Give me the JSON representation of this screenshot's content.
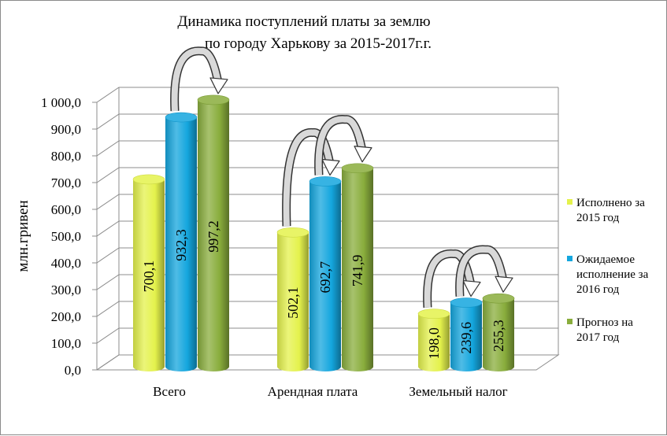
{
  "chart_data": {
    "type": "bar",
    "title": [
      "Динамика поступлений платы за землю",
      "по городу Харькову за 2015-2017г.г."
    ],
    "ylabel": "млн.гривен",
    "xlabel": "",
    "ylim": [
      0,
      1000
    ],
    "y_ticks": [
      "0,0",
      "100,0",
      "200,0",
      "300,0",
      "400,0",
      "500,0",
      "600,0",
      "700,0",
      "800,0",
      "900,0",
      "1 000,0"
    ],
    "categories": [
      "Всего",
      "Арендная плата",
      "Земельный налог"
    ],
    "series": [
      {
        "name": [
          "Исполнено за",
          "2015 год"
        ],
        "color": "#e4f24c",
        "values": [
          700.1,
          502.1,
          198.0
        ],
        "labels": [
          "700,1",
          "502,1",
          "198,0"
        ]
      },
      {
        "name": [
          "Ожидаемое",
          "исполнение  за",
          "2016 год"
        ],
        "color": "#14a6de",
        "values": [
          932.3,
          692.7,
          239.6
        ],
        "labels": [
          "932,3",
          "692,7",
          "239,6"
        ]
      },
      {
        "name": [
          "Прогноз на",
          "2017 год"
        ],
        "color": "#89ad3c",
        "values": [
          997.2,
          741.9,
          255.3
        ],
        "labels": [
          "997,2",
          "741,9",
          "255,3"
        ]
      }
    ],
    "legend_position": "right",
    "grid": true,
    "style": "3d-cylinders"
  }
}
